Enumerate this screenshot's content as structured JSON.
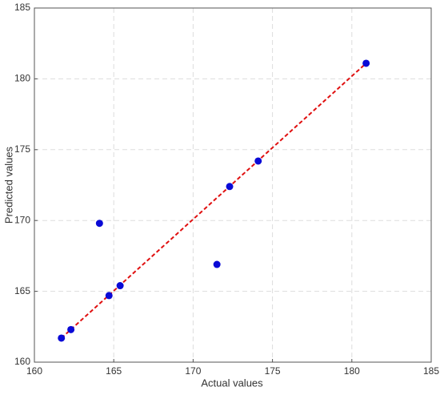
{
  "chart_data": {
    "type": "scatter",
    "xlabel": "Actual values",
    "ylabel": "Predicted values",
    "x": [
      161.7,
      162.3,
      164.1,
      164.7,
      165.4,
      171.5,
      172.3,
      174.1,
      180.9
    ],
    "y": [
      161.7,
      162.3,
      169.8,
      164.7,
      165.4,
      166.9,
      172.4,
      174.2,
      181.1
    ],
    "color": "#0a0ad6",
    "fit_line": {
      "x": [
        161.7,
        180.9
      ],
      "y": [
        161.7,
        181.1
      ],
      "color": "#e01010"
    },
    "xlim": [
      160,
      185
    ],
    "ylim": [
      160,
      185
    ],
    "xticks": [
      160,
      165,
      170,
      175,
      180,
      185
    ],
    "yticks": [
      160,
      165,
      170,
      175,
      180,
      185
    ],
    "grid": true
  }
}
